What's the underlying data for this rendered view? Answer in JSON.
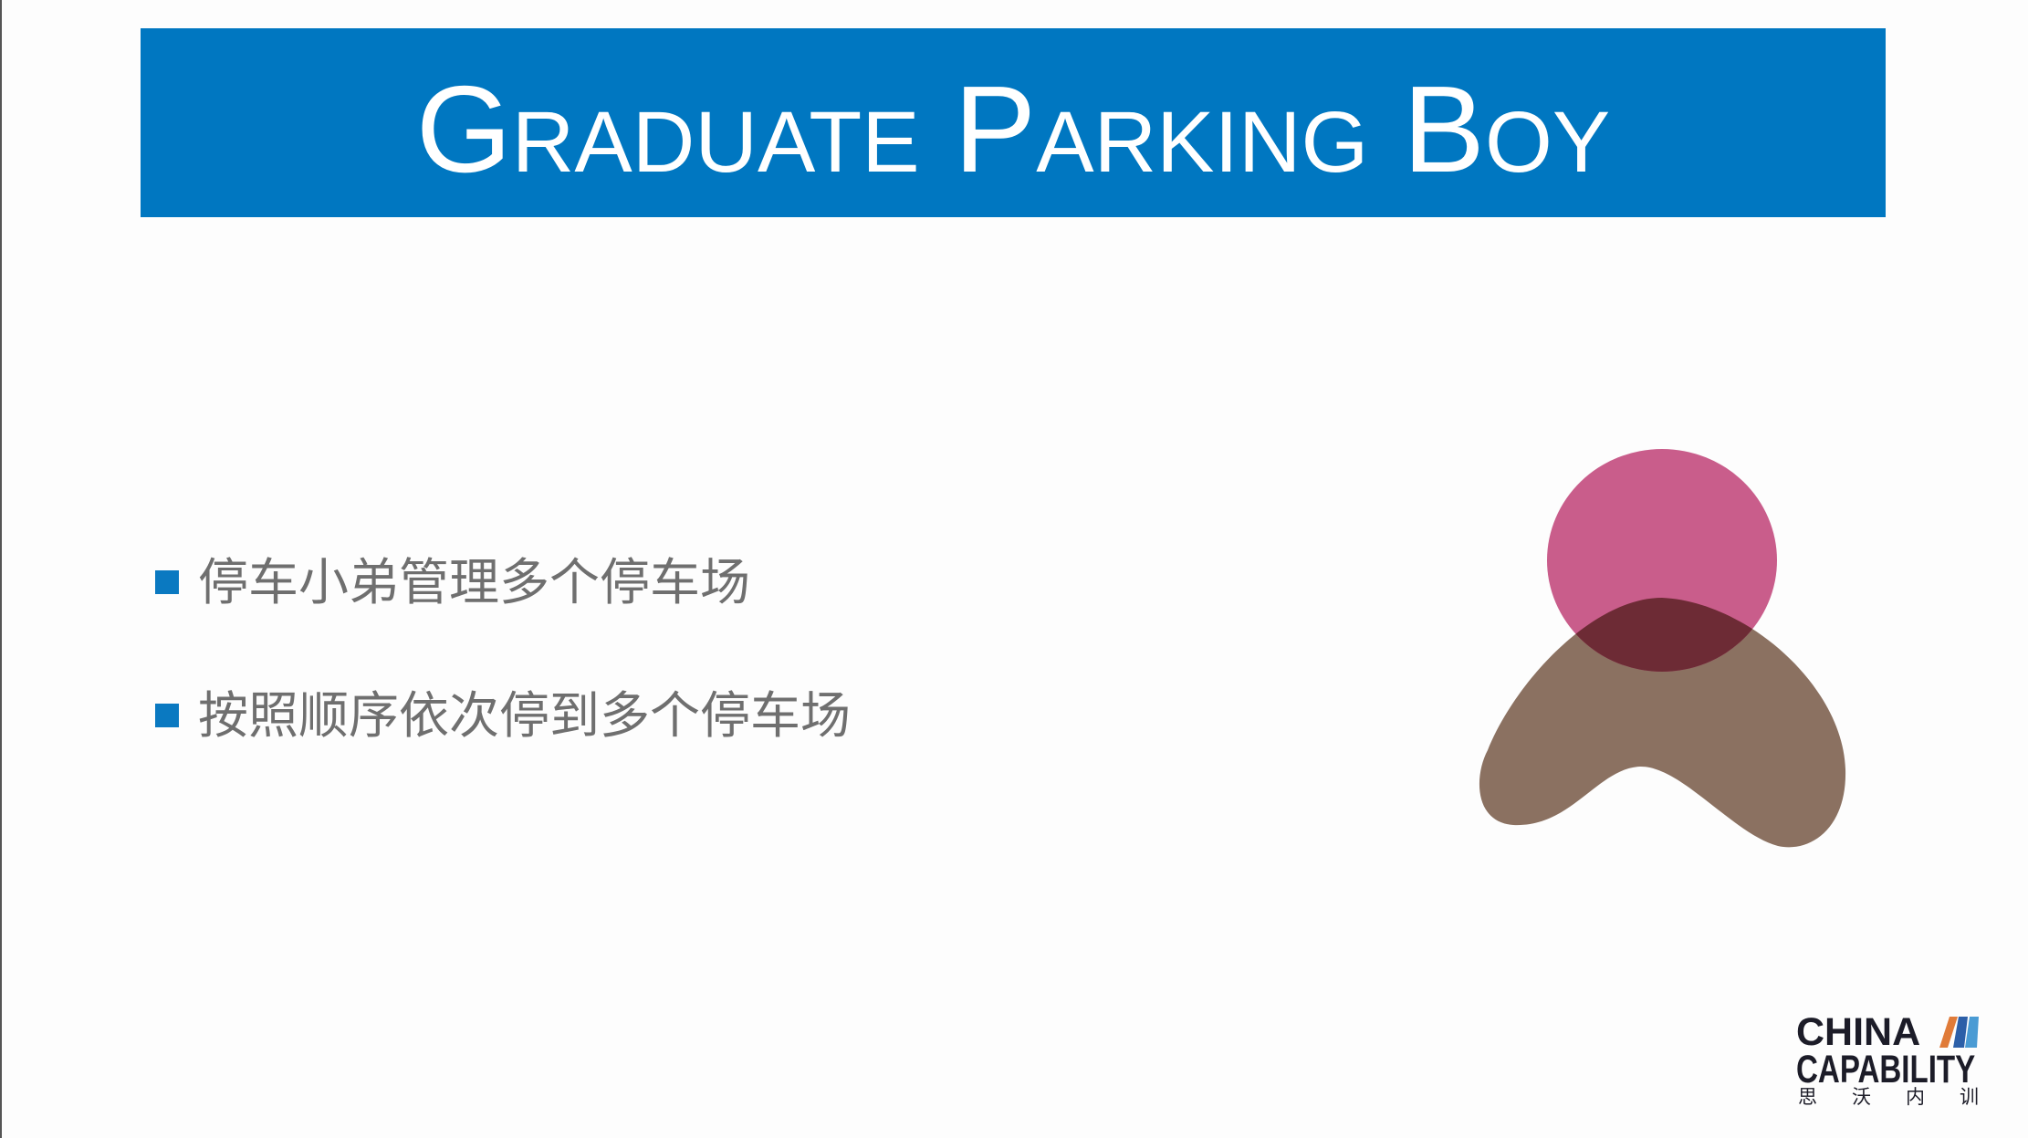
{
  "slide": {
    "title": "Graduate Parking Boy",
    "bullets": [
      "停车小弟管理多个停车场",
      "按照顺序依次停到多个停车场"
    ]
  },
  "graphic": {
    "icon": "person-abstract-icon"
  },
  "logo": {
    "line1": "CHINA",
    "line2": "CAPABILITY",
    "chinese": [
      "思",
      "沃",
      "内",
      "训"
    ],
    "icon": "slanted-bars-icon"
  },
  "colors": {
    "background": "#fdfdfd",
    "title_bar": "#0077c1",
    "bullet": "#0a79c1",
    "body_text": "#6f6f6f",
    "circle": "#c95d8b",
    "blob": "#8b7161",
    "overlap": "#6d2b35",
    "logo_text": "#1c1c28",
    "logo_orange": "#e07b39",
    "logo_blue": "#2c5fa8",
    "logo_light_blue": "#4a9bd4"
  }
}
